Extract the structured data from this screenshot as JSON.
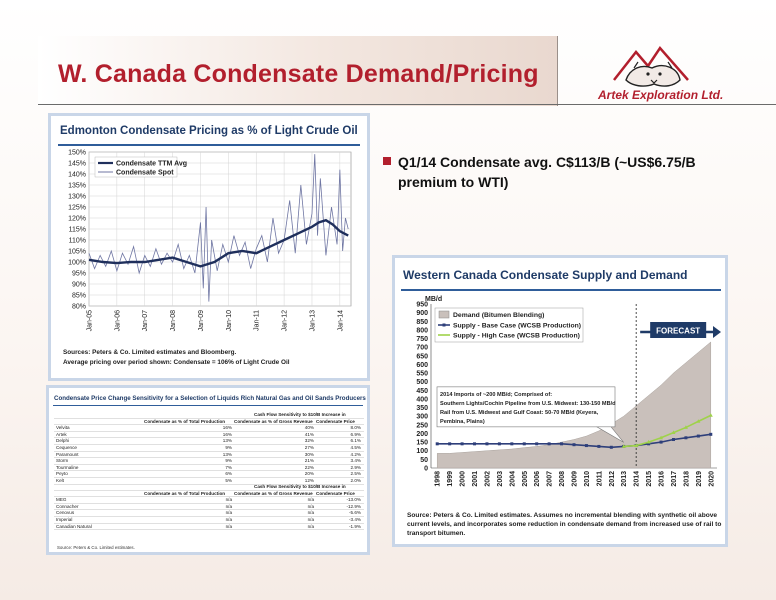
{
  "slide": {
    "title": "W. Canada Condensate Demand/Pricing",
    "company": "Artek Exploration Ltd.",
    "bullet": "Q1/14 Condensate avg. C$113/B (~US$6.75/B premium to WTI)"
  },
  "colors": {
    "title_red": "#b21f2d",
    "navy": "#1f3b67",
    "ttm_line": "#1f2f5c",
    "spot_line": "#6f76a3",
    "demand_area": "#c9c0bb",
    "base_case": "#2e3f7a",
    "high_case": "#9fd24a"
  },
  "chart_data": [
    {
      "type": "line",
      "title": "Edmonton Condensate Pricing as % of Light Crude Oil",
      "x_tick_labels": [
        "Jan-05",
        "Jan-06",
        "Jan-07",
        "Jan-08",
        "Jan-09",
        "Jan-10",
        "Jan-11",
        "Jan-12",
        "Jan-13",
        "Jan-14"
      ],
      "y_tick_labels": [
        "80%",
        "85%",
        "90%",
        "95%",
        "100%",
        "105%",
        "110%",
        "115%",
        "120%",
        "125%",
        "130%",
        "135%",
        "140%",
        "145%",
        "150%"
      ],
      "ylim": [
        80,
        150
      ],
      "x_range_years": [
        2005,
        2014.4
      ],
      "grid": true,
      "legend": "top-left",
      "series": [
        {
          "name": "Condensate TTM Avg",
          "x": [
            2005.0,
            2005.5,
            2006.0,
            2006.5,
            2007.0,
            2007.5,
            2008.0,
            2008.5,
            2009.0,
            2009.5,
            2010.0,
            2010.5,
            2011.0,
            2011.5,
            2012.0,
            2012.5,
            2013.0,
            2013.25,
            2013.5,
            2013.75,
            2014.0,
            2014.3
          ],
          "values": [
            101,
            100,
            99.5,
            100,
            100,
            101,
            102,
            100,
            98,
            100,
            104,
            105,
            104,
            107,
            110,
            113,
            116,
            118,
            119,
            117,
            114,
            112
          ]
        },
        {
          "name": "Condensate Spot",
          "x": [
            2005.0,
            2005.2,
            2005.4,
            2005.6,
            2005.8,
            2006.0,
            2006.2,
            2006.4,
            2006.6,
            2006.8,
            2007.0,
            2007.2,
            2007.4,
            2007.6,
            2007.8,
            2008.0,
            2008.2,
            2008.4,
            2008.6,
            2008.8,
            2009.0,
            2009.1,
            2009.2,
            2009.3,
            2009.4,
            2009.6,
            2009.8,
            2010.0,
            2010.2,
            2010.4,
            2010.6,
            2010.8,
            2011.0,
            2011.2,
            2011.4,
            2011.6,
            2011.8,
            2012.0,
            2012.2,
            2012.4,
            2012.6,
            2012.8,
            2013.0,
            2013.1,
            2013.2,
            2013.3,
            2013.5,
            2013.7,
            2013.9,
            2014.0,
            2014.1,
            2014.2,
            2014.3
          ],
          "values": [
            104,
            97,
            103,
            98,
            105,
            96,
            104,
            99,
            107,
            95,
            103,
            98,
            106,
            99,
            104,
            100,
            108,
            97,
            103,
            95,
            118,
            88,
            125,
            82,
            110,
            96,
            108,
            100,
            112,
            103,
            109,
            97,
            106,
            112,
            100,
            120,
            104,
            110,
            128,
            104,
            135,
            108,
            122,
            149,
            112,
            138,
            103,
            125,
            108,
            142,
            105,
            120,
            115
          ]
        }
      ],
      "notes": [
        "Sources: Peters & Co. Limited estimates and Bloomberg.",
        "Average pricing over period shown: Condensate = 106% of Light Crude Oil"
      ]
    },
    {
      "type": "area",
      "title": "Western Canada Condensate Supply and Demand",
      "ylabel": "MB/d",
      "ylim": [
        0,
        950
      ],
      "y_tick_labels": [
        "0",
        "50",
        "100",
        "150",
        "200",
        "250",
        "300",
        "350",
        "400",
        "450",
        "500",
        "550",
        "600",
        "650",
        "700",
        "750",
        "800",
        "850",
        "900",
        "950"
      ],
      "categories": [
        "1998",
        "1999",
        "2000",
        "2001",
        "2002",
        "2003",
        "2004",
        "2005",
        "2006",
        "2007",
        "2008",
        "2009",
        "2010",
        "2011",
        "2012",
        "2013",
        "2014",
        "2015",
        "2016",
        "2017",
        "2018",
        "2019",
        "2020"
      ],
      "forecast_label": "FORECAST",
      "forecast_start": "2014",
      "legend": "top-left",
      "series": [
        {
          "name": "Demand (Bitumen Blending)",
          "type": "area",
          "values": [
            85,
            85,
            90,
            95,
            100,
            105,
            110,
            118,
            125,
            135,
            150,
            165,
            185,
            215,
            255,
            300,
            360,
            420,
            480,
            550,
            610,
            670,
            730
          ]
        },
        {
          "name": "Supply - Base Case (WCSB Production)",
          "type": "line",
          "values": [
            140,
            140,
            140,
            140,
            140,
            140,
            140,
            140,
            140,
            140,
            140,
            135,
            130,
            125,
            120,
            125,
            130,
            140,
            150,
            165,
            175,
            185,
            195
          ]
        },
        {
          "name": "Supply - High Case (WCSB Production)",
          "type": "line",
          "values": [
            null,
            null,
            null,
            null,
            null,
            null,
            null,
            null,
            null,
            null,
            null,
            null,
            null,
            null,
            null,
            125,
            130,
            150,
            175,
            205,
            235,
            270,
            305
          ]
        }
      ],
      "annotation": [
        "2014 Imports of ~200 MB/d; Comprised of:",
        "Southern Lights/Cochin Pipeline from U.S. Midwest: 130-150 MB/d",
        "Rail from U.S. Midwest and Gulf Coast: 50-70 MB/d (Keyera,",
        "Pembina, Plains)"
      ],
      "notes": [
        "Source: Peters & Co. Limited estimates. Assumes no incremental blending with synthetic oil above",
        "current levels, and incorporates some reduction in condensate demand from increased use of rail to",
        "transport bitumen."
      ]
    },
    {
      "type": "table",
      "title": "Condensate Price Change Sensitivity for a Selection of Liquids Rich Natural Gas and Oil Sands Producers",
      "sections": [
        {
          "header_top": "Cash Flow Sensitivity to $10/B Increase in",
          "columns": [
            "",
            "Condensate as % of Total Production",
            "Condensate as % of Gross Revenue",
            "Condensate Price"
          ],
          "rows": [
            [
              "Velvita",
              "16%",
              "40%",
              "8.0%"
            ],
            [
              "Artek",
              "16%",
              "41%",
              "6.9%"
            ],
            [
              "Delphi",
              "13%",
              "32%",
              "6.1%"
            ],
            [
              "Cequence",
              "9%",
              "27%",
              "4.5%"
            ],
            [
              "Paramount",
              "13%",
              "30%",
              "4.2%"
            ],
            [
              "Storm",
              "9%",
              "21%",
              "3.4%"
            ],
            [
              "Tourmaline",
              "7%",
              "22%",
              "2.9%"
            ],
            [
              "Peyto",
              "6%",
              "20%",
              "2.5%"
            ],
            [
              "Kelt",
              "5%",
              "12%",
              "2.0%"
            ]
          ]
        },
        {
          "header_top": "Cash Flow Sensitivity to $10/B Increase in",
          "columns": [
            "",
            "Condensate as % of Total Production",
            "Condensate as % of Gross Revenue",
            "Condensate Price"
          ],
          "rows": [
            [
              "MEG",
              "n/a",
              "n/a",
              "-13.0%"
            ],
            [
              "Connacher",
              "n/a",
              "n/a",
              "-12.9%"
            ],
            [
              "Cenovus",
              "n/a",
              "n/a",
              "-5.6%"
            ],
            [
              "Imperial",
              "n/a",
              "n/a",
              "-3.4%"
            ],
            [
              "Canadian Natural",
              "n/a",
              "n/a",
              "-1.9%"
            ]
          ]
        }
      ],
      "source": "Source: Peters & Co. Limited estimates."
    }
  ]
}
